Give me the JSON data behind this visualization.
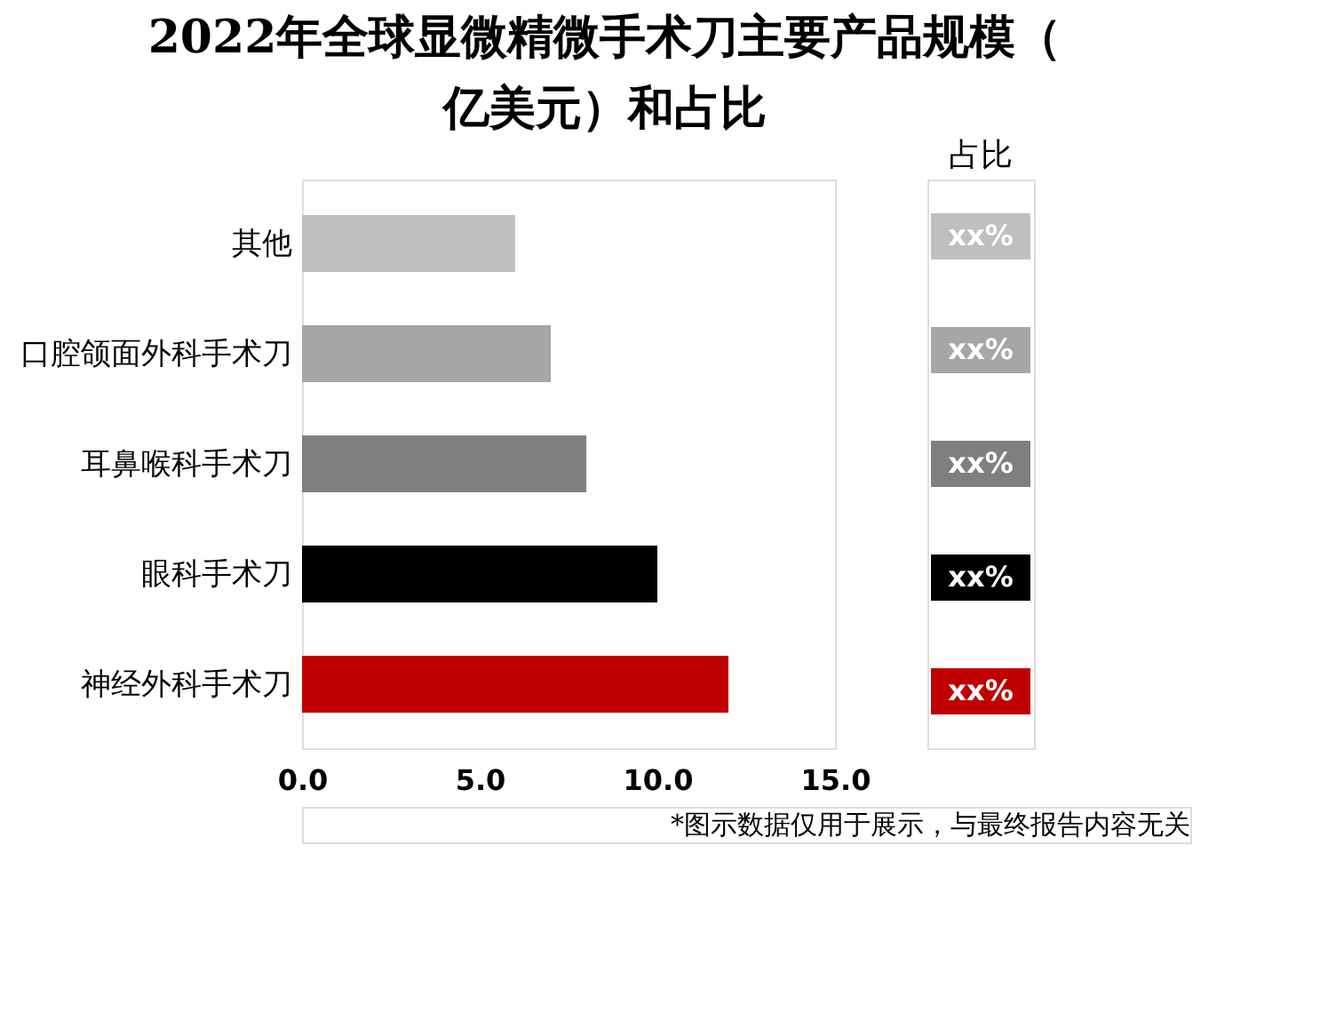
{
  "chart_data": {
    "type": "bar",
    "orientation": "horizontal",
    "title": "2022年全球显微精微手术刀主要产品规模（亿美元）和占比",
    "categories": [
      "其他",
      "口腔颌面外科手术刀",
      "耳鼻喉科手术刀",
      "眼科手术刀",
      "神经外科手术刀"
    ],
    "values": [
      6.0,
      7.0,
      8.0,
      10.0,
      12.0
    ],
    "colors": [
      "#bfbfbf",
      "#a6a6a6",
      "#7f7f7f",
      "#000000",
      "#c00000"
    ],
    "value_labels": [
      "xx%",
      "xx%",
      "xx%",
      "xx%",
      "xx%"
    ],
    "legend_title": "占比",
    "xlim": [
      0,
      15
    ],
    "xticks": [
      {
        "value": 0,
        "label": "0.0"
      },
      {
        "value": 5,
        "label": "5.0"
      },
      {
        "value": 10,
        "label": "10.0"
      },
      {
        "value": 15,
        "label": "15.0"
      }
    ],
    "grid": false,
    "annotations": [
      "*图示数据仅用于展示，与最终报告内容无关"
    ]
  }
}
